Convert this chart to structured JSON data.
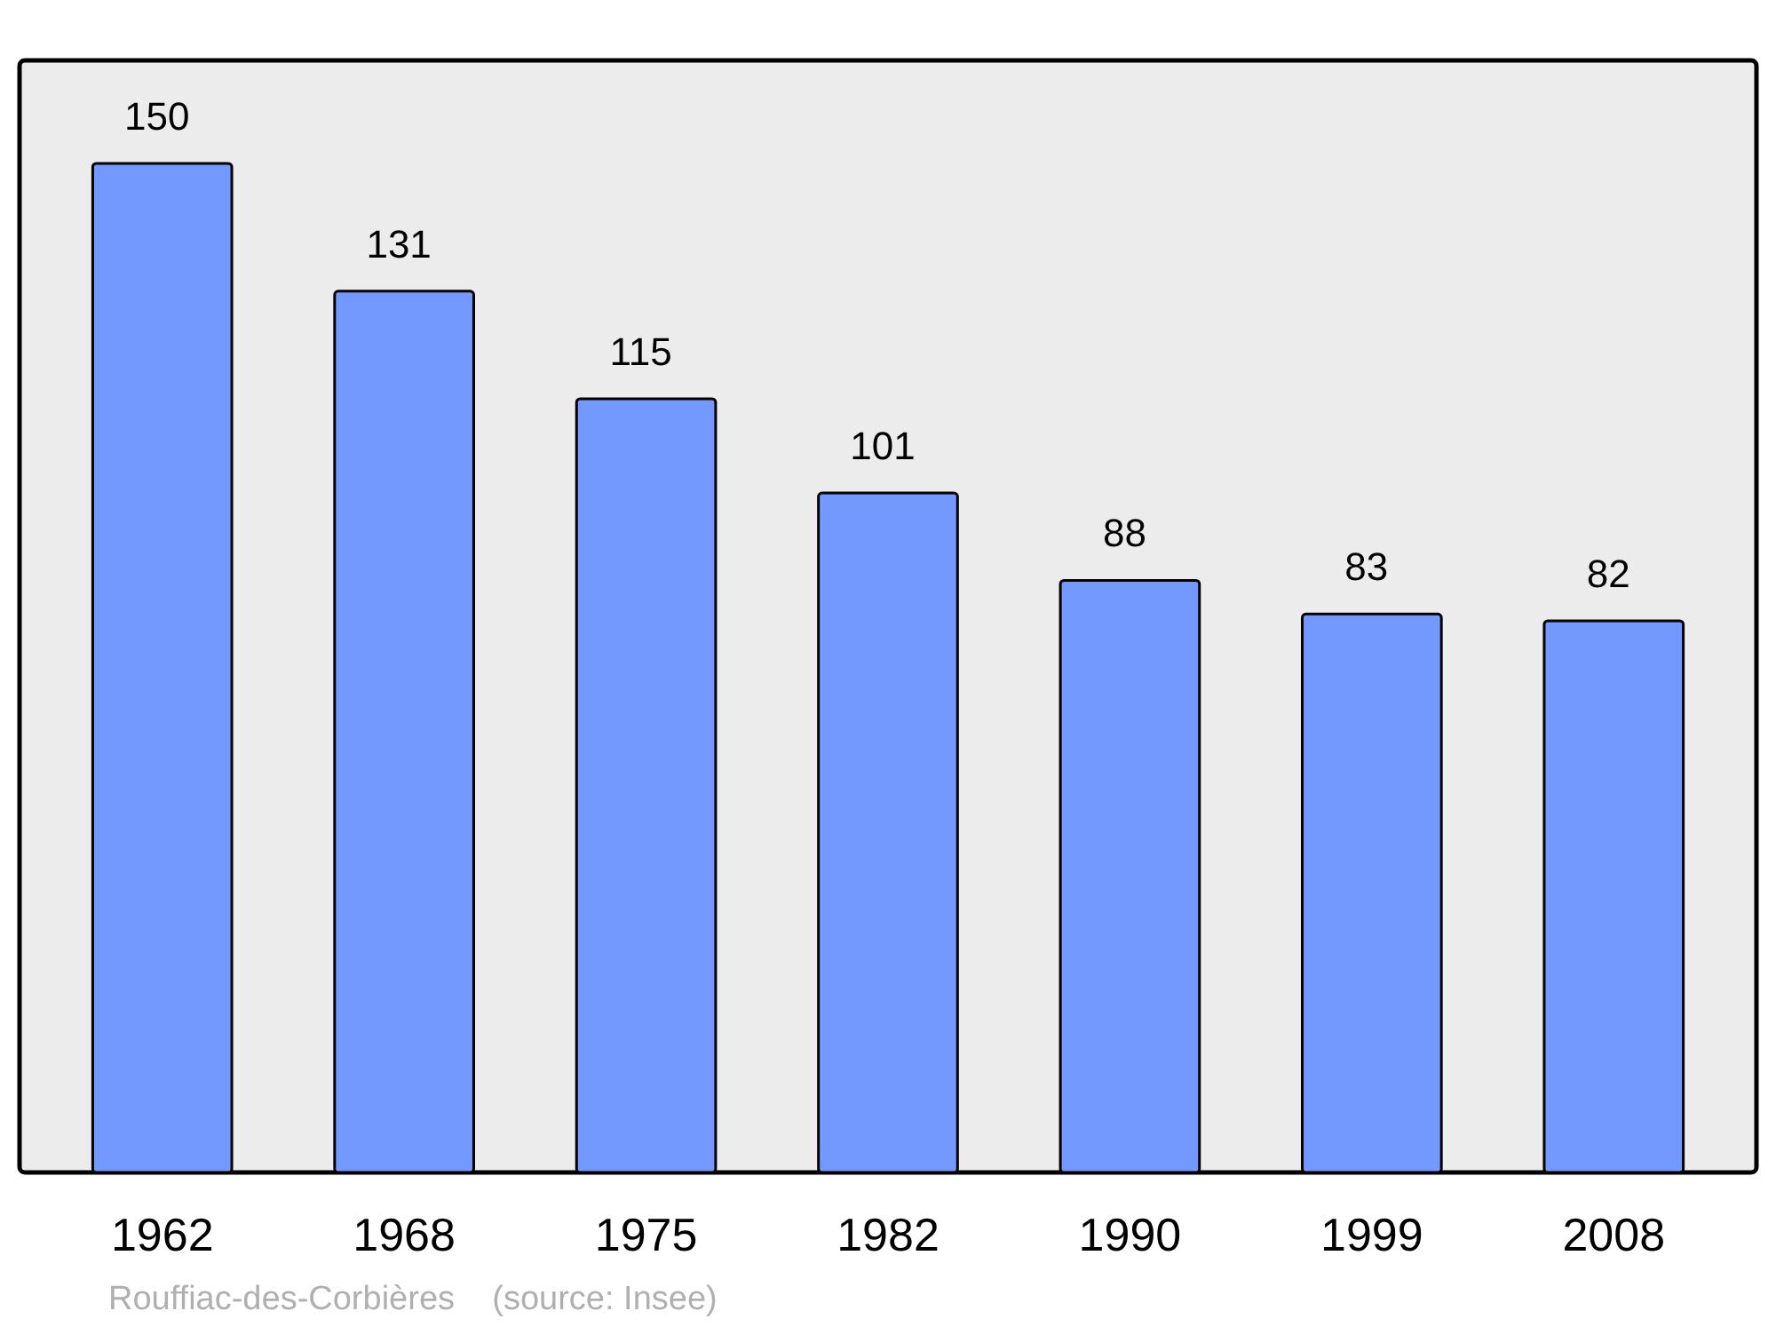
{
  "chart_data": {
    "type": "bar",
    "categories": [
      "1962",
      "1968",
      "1975",
      "1982",
      "1990",
      "1999",
      "2008"
    ],
    "values": [
      150,
      131,
      115,
      101,
      88,
      83,
      82
    ],
    "color": "#7399ff",
    "data_labels": true,
    "annotations": [
      "Rouffiac-des-Corbières    (source: Insee)"
    ]
  }
}
